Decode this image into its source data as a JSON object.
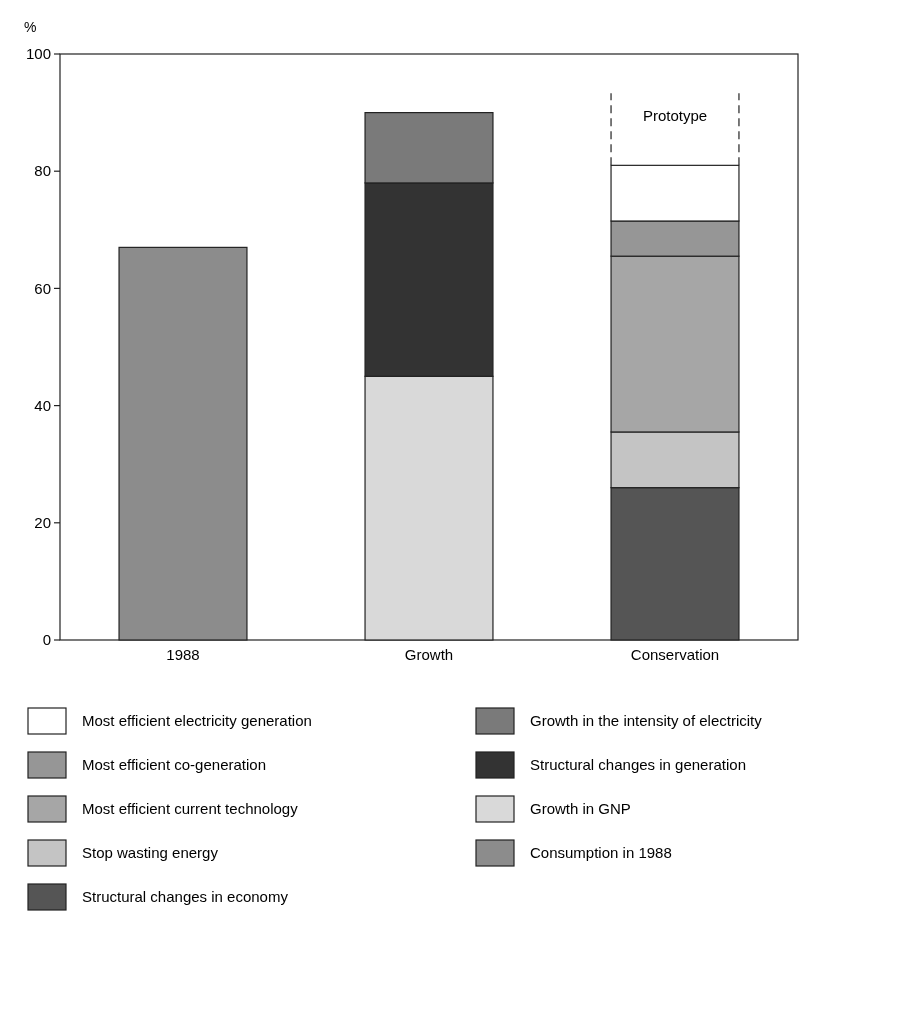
{
  "chart_data": {
    "type": "bar",
    "stacked": true,
    "ylabel": "%",
    "categories": [
      "1988",
      "Growth",
      "Conservation"
    ],
    "ylim": [
      0,
      100
    ],
    "yticks": [
      0,
      20,
      40,
      60,
      80,
      100
    ],
    "grid": false,
    "legend": "bottom",
    "annotations": [
      "Prototype"
    ],
    "series": [
      {
        "name": "Consumption in 1988",
        "color": "#8c8c8c",
        "values": [
          67,
          null,
          null
        ]
      },
      {
        "name": "Growth in GNP",
        "color": "#d9d9d9",
        "values": [
          null,
          45,
          null
        ]
      },
      {
        "name": "Structural changes in generation",
        "color": "#333333",
        "values": [
          null,
          33,
          null
        ]
      },
      {
        "name": "Growth in the intensity of electricity",
        "color": "#7a7a7a",
        "values": [
          null,
          12,
          null
        ]
      },
      {
        "name": "Structural changes in economy",
        "color": "#555555",
        "values": [
          null,
          null,
          26
        ]
      },
      {
        "name": "Stop wasting energy",
        "color": "#c4c4c4",
        "values": [
          null,
          null,
          9.5
        ]
      },
      {
        "name": "Most efficient current technology",
        "color": "#a6a6a6",
        "values": [
          null,
          null,
          30
        ]
      },
      {
        "name": "Most efficient co-generation",
        "color": "#969696",
        "values": [
          null,
          null,
          6
        ]
      },
      {
        "name": "Most efficient electricity generation",
        "color": "#ffffff",
        "values": [
          null,
          null,
          9.5
        ]
      }
    ]
  }
}
